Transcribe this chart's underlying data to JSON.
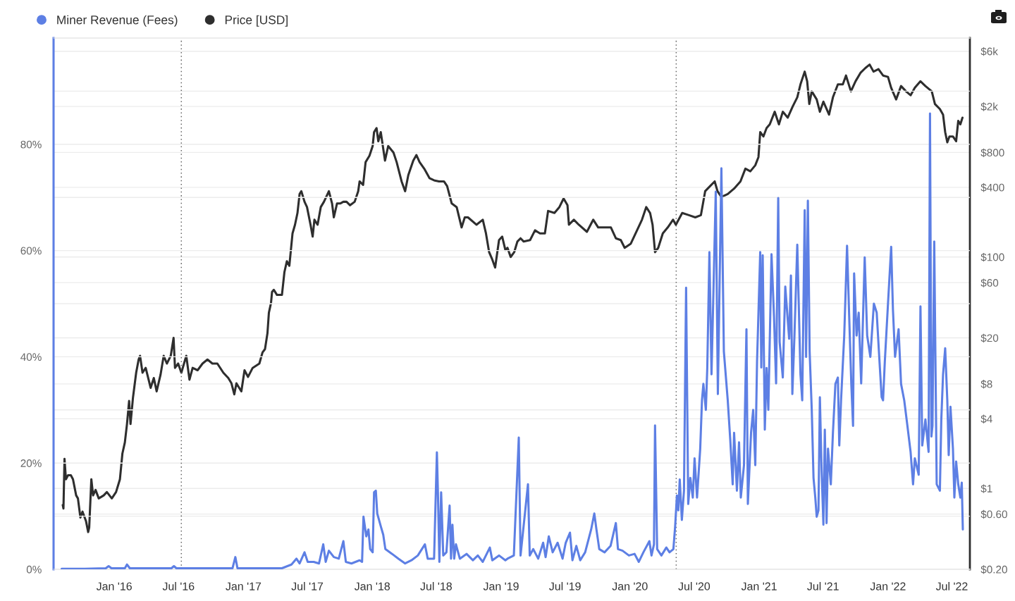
{
  "chart_data": {
    "type": "line",
    "series": [
      {
        "name": "Miner Revenue (Fees)",
        "color": "#5d7fe4",
        "axis": "y",
        "x": [
          "2015-08-05",
          "2015-10-09",
          "2015-12-08",
          "2015-12-16",
          "2015-12-24",
          "2016-01-31",
          "2016-02-06",
          "2016-02-14",
          "2016-04-26",
          "2016-06-11",
          "2016-06-18",
          "2016-06-25",
          "2016-09-13",
          "2016-12-01",
          "2016-12-09",
          "2016-12-15",
          "2017-02-19",
          "2017-04-20",
          "2017-05-17",
          "2017-05-31",
          "2017-06-09",
          "2017-06-23",
          "2017-07-02",
          "2017-07-19",
          "2017-08-03",
          "2017-08-15",
          "2017-08-22",
          "2017-08-31",
          "2017-09-14",
          "2017-09-28",
          "2017-10-11",
          "2017-10-18",
          "2017-11-03",
          "2017-11-26",
          "2017-12-03",
          "2017-12-07",
          "2017-12-15",
          "2017-12-21",
          "2017-12-26",
          "2018-01-02",
          "2018-01-06",
          "2018-01-11",
          "2018-01-15",
          "2018-01-25",
          "2018-02-01",
          "2018-02-07",
          "2018-02-26",
          "2018-03-16",
          "2018-04-04",
          "2018-04-22",
          "2018-05-10",
          "2018-05-30",
          "2018-06-07",
          "2018-06-25",
          "2018-07-03",
          "2018-07-06",
          "2018-07-10",
          "2018-07-15",
          "2018-07-21",
          "2018-07-30",
          "2018-08-08",
          "2018-08-12",
          "2018-08-16",
          "2018-08-21",
          "2018-08-26",
          "2018-09-06",
          "2018-09-25",
          "2018-10-13",
          "2018-10-27",
          "2018-11-10",
          "2018-11-30",
          "2018-12-07",
          "2018-12-26",
          "2019-01-13",
          "2019-01-19",
          "2019-02-06",
          "2019-02-20",
          "2019-02-25",
          "2019-03-18",
          "2019-03-23",
          "2019-04-02",
          "2019-04-16",
          "2019-04-30",
          "2019-05-07",
          "2019-05-16",
          "2019-05-27",
          "2019-06-10",
          "2019-06-24",
          "2019-07-03",
          "2019-07-15",
          "2019-07-22",
          "2019-08-02",
          "2019-08-13",
          "2019-08-27",
          "2019-09-13",
          "2019-09-22",
          "2019-09-28",
          "2019-10-06",
          "2019-10-21",
          "2019-11-07",
          "2019-11-22",
          "2019-11-28",
          "2019-12-11",
          "2019-12-29",
          "2020-01-14",
          "2020-01-26",
          "2020-02-08",
          "2020-02-25",
          "2020-03-02",
          "2020-03-09",
          "2020-03-12",
          "2020-03-18",
          "2020-03-30",
          "2020-04-13",
          "2020-04-22",
          "2020-05-03",
          "2020-05-08",
          "2020-05-13",
          "2020-05-17",
          "2020-05-21",
          "2020-05-27",
          "2020-06-02",
          "2020-06-08",
          "2020-06-14",
          "2020-06-20",
          "2020-06-27",
          "2020-07-02",
          "2020-07-09",
          "2020-07-18",
          "2020-07-23",
          "2020-07-27",
          "2020-08-03",
          "2020-08-07",
          "2020-08-13",
          "2020-08-19",
          "2020-08-31",
          "2020-09-06",
          "2020-09-16",
          "2020-09-23",
          "2020-10-04",
          "2020-10-11",
          "2020-10-18",
          "2020-10-22",
          "2020-10-30",
          "2020-11-05",
          "2020-11-10",
          "2020-11-19",
          "2020-11-26",
          "2020-11-30",
          "2020-12-09",
          "2020-12-15",
          "2020-12-21",
          "2020-12-26",
          "2021-01-04",
          "2021-01-07",
          "2021-01-11",
          "2021-01-17",
          "2021-01-22",
          "2021-01-27",
          "2021-02-05",
          "2021-02-12",
          "2021-02-18",
          "2021-02-24",
          "2021-02-28",
          "2021-03-09",
          "2021-03-16",
          "2021-03-27",
          "2021-04-01",
          "2021-04-05",
          "2021-04-11",
          "2021-04-19",
          "2021-04-28",
          "2021-05-03",
          "2021-05-10",
          "2021-05-14",
          "2021-05-19",
          "2021-05-24",
          "2021-05-30",
          "2021-06-04",
          "2021-06-09",
          "2021-06-13",
          "2021-06-18",
          "2021-06-22",
          "2021-06-27",
          "2021-07-02",
          "2021-07-06",
          "2021-07-11",
          "2021-07-15",
          "2021-07-23",
          "2021-07-29",
          "2021-08-05",
          "2021-08-12",
          "2021-08-16",
          "2021-08-21",
          "2021-08-30",
          "2021-09-07",
          "2021-09-13",
          "2021-09-19",
          "2021-09-24",
          "2021-09-27",
          "2021-10-04",
          "2021-10-10",
          "2021-10-17",
          "2021-10-27",
          "2021-11-03",
          "2021-11-12",
          "2021-11-22",
          "2021-11-30",
          "2021-12-09",
          "2021-12-14",
          "2021-12-18",
          "2021-12-23",
          "2022-01-01",
          "2022-01-10",
          "2022-01-15",
          "2022-01-21",
          "2022-01-31",
          "2022-02-07",
          "2022-02-16",
          "2022-02-25",
          "2022-03-06",
          "2022-03-13",
          "2022-03-18",
          "2022-03-29",
          "2022-04-03",
          "2022-04-08",
          "2022-04-17",
          "2022-04-26",
          "2022-04-30",
          "2022-05-04",
          "2022-05-07",
          "2022-05-12",
          "2022-05-19",
          "2022-05-28",
          "2022-06-01",
          "2022-06-06",
          "2022-06-12",
          "2022-06-18",
          "2022-06-22",
          "2022-06-27",
          "2022-07-04",
          "2022-07-08",
          "2022-07-13",
          "2022-07-19",
          "2022-07-25",
          "2022-07-29",
          "2022-08-01"
        ],
        "values": [
          0.1,
          0.1,
          0.2,
          0.6,
          0.2,
          0.2,
          0.9,
          0.2,
          0.2,
          0.2,
          0.6,
          0.2,
          0.2,
          0.2,
          2.3,
          0.2,
          0.2,
          0.2,
          0.9,
          2.0,
          1.1,
          3.2,
          1.4,
          1.4,
          1.1,
          4.7,
          1.4,
          3.5,
          2.3,
          2.0,
          5.3,
          1.4,
          1.1,
          1.7,
          1.4,
          9.9,
          6.2,
          7.5,
          3.8,
          3.2,
          14.5,
          14.8,
          10.5,
          8.1,
          6.5,
          3.8,
          2.9,
          2.0,
          1.1,
          1.7,
          2.6,
          4.7,
          2.0,
          2.0,
          22.0,
          14.2,
          1.4,
          14.5,
          2.6,
          3.2,
          12.0,
          2.0,
          8.4,
          2.0,
          4.7,
          2.0,
          2.9,
          1.7,
          2.6,
          1.4,
          4.1,
          1.7,
          2.6,
          1.7,
          2.0,
          2.6,
          24.8,
          2.6,
          16.0,
          2.6,
          3.8,
          2.0,
          5.0,
          2.3,
          6.2,
          3.2,
          5.0,
          2.0,
          5.0,
          6.9,
          1.7,
          4.4,
          1.7,
          3.2,
          7.5,
          10.5,
          7.5,
          3.8,
          3.2,
          4.4,
          8.7,
          3.8,
          3.5,
          2.6,
          2.9,
          1.4,
          3.2,
          5.3,
          2.6,
          4.7,
          27.1,
          3.8,
          2.6,
          4.1,
          3.2,
          3.8,
          8.1,
          13.9,
          11.1,
          16.9,
          9.3,
          14.8,
          53.0,
          12.3,
          17.2,
          13.5,
          20.9,
          13.5,
          22.7,
          31.8,
          34.9,
          30.0,
          37.9,
          59.7,
          36.7,
          71.1,
          33.0,
          75.5,
          41.0,
          31.8,
          24.5,
          16.0,
          25.7,
          14.8,
          23.9,
          13.5,
          19.6,
          45.2,
          12.3,
          25.7,
          30.0,
          19.6,
          39.1,
          59.7,
          38,
          59.1,
          26.3,
          37.9,
          30,
          59.3,
          47.7,
          35,
          69.9,
          42.8,
          36.1,
          53.2,
          43.4,
          55.3,
          33.0,
          44.0,
          61.1,
          36.7,
          31.8,
          67.6,
          40,
          69.4,
          41.0,
          30.0,
          17.2,
          13.5,
          9.9,
          11.1,
          32.4,
          18.4,
          8.4,
          26.3,
          8.7,
          22.7,
          16.0,
          25.7,
          34.9,
          36.1,
          23.3,
          31.8,
          44.0,
          60.9,
          47.7,
          35,
          27.0,
          55.7,
          44.0,
          48.3,
          35,
          58.7,
          44.0,
          40,
          50,
          48.3,
          37.9,
          32.4,
          31.8,
          39.1,
          50,
          60.7,
          48.9,
          40,
          45.2,
          34.9,
          31.8,
          27.0,
          22.1,
          16.0,
          20.9,
          17.8,
          49.5,
          23.3,
          28.2,
          22.1,
          85.8,
          25,
          27.0,
          61.7,
          16.0,
          14.8,
          28.2,
          36.7,
          41.6,
          31.8,
          21.5,
          30.6,
          22.7,
          13.5,
          20.3,
          16.0,
          13.5,
          16.3,
          7.5
        ]
      },
      {
        "name": "Price [USD]",
        "color": "#2e2e2e",
        "axis": "y2",
        "x": [
          "2015-08-08",
          "2015-08-10",
          "2015-08-13",
          "2015-08-17",
          "2015-08-23",
          "2015-08-31",
          "2015-09-06",
          "2015-09-15",
          "2015-09-20",
          "2015-09-27",
          "2015-10-03",
          "2015-10-13",
          "2015-10-19",
          "2015-10-22",
          "2015-10-28",
          "2015-11-02",
          "2015-11-09",
          "2015-11-18",
          "2015-12-02",
          "2015-12-11",
          "2015-12-25",
          "2016-01-06",
          "2016-01-17",
          "2016-01-24",
          "2016-01-31",
          "2016-02-06",
          "2016-02-12",
          "2016-02-16",
          "2016-02-23",
          "2016-03-03",
          "2016-03-10",
          "2016-03-14",
          "2016-03-21",
          "2016-03-30",
          "2016-04-13",
          "2016-04-22",
          "2016-04-30",
          "2016-05-11",
          "2016-05-20",
          "2016-05-29",
          "2016-06-09",
          "2016-06-17",
          "2016-06-21",
          "2016-06-30",
          "2016-07-09",
          "2016-07-23",
          "2016-08-01",
          "2016-08-10",
          "2016-08-24",
          "2016-09-07",
          "2016-09-21",
          "2016-10-05",
          "2016-10-19",
          "2016-11-05",
          "2016-11-19",
          "2016-11-28",
          "2016-12-06",
          "2016-12-12",
          "2016-12-26",
          "2017-01-04",
          "2017-01-14",
          "2017-01-27",
          "2017-02-15",
          "2017-02-24",
          "2017-03-03",
          "2017-03-10",
          "2017-03-14",
          "2017-03-20",
          "2017-03-23",
          "2017-03-28",
          "2017-04-06",
          "2017-04-20",
          "2017-04-27",
          "2017-05-04",
          "2017-05-11",
          "2017-05-20",
          "2017-05-27",
          "2017-06-03",
          "2017-06-09",
          "2017-06-14",
          "2017-06-23",
          "2017-06-30",
          "2017-07-10",
          "2017-07-16",
          "2017-07-21",
          "2017-07-30",
          "2017-08-08",
          "2017-08-17",
          "2017-08-31",
          "2017-09-09",
          "2017-09-14",
          "2017-09-23",
          "2017-10-02",
          "2017-10-11",
          "2017-10-20",
          "2017-10-30",
          "2017-11-12",
          "2017-11-22",
          "2017-11-26",
          "2017-12-06",
          "2017-12-13",
          "2017-12-24",
          "2018-01-02",
          "2018-01-06",
          "2018-01-13",
          "2018-01-18",
          "2018-01-25",
          "2018-02-06",
          "2018-02-15",
          "2018-03-02",
          "2018-03-11",
          "2018-03-25",
          "2018-04-04",
          "2018-04-13",
          "2018-04-27",
          "2018-05-06",
          "2018-05-15",
          "2018-05-28",
          "2018-06-12",
          "2018-06-25",
          "2018-07-09",
          "2018-07-23",
          "2018-08-01",
          "2018-08-14",
          "2018-08-28",
          "2018-09-11",
          "2018-09-20",
          "2018-09-29",
          "2018-10-23",
          "2018-11-10",
          "2018-11-19",
          "2018-11-28",
          "2018-12-07",
          "2018-12-15",
          "2018-12-26",
          "2019-01-04",
          "2019-01-13",
          "2019-01-19",
          "2019-01-28",
          "2019-02-07",
          "2019-02-16",
          "2019-02-25",
          "2019-03-06",
          "2019-03-24",
          "2019-04-07",
          "2019-04-21",
          "2019-05-05",
          "2019-05-14",
          "2019-06-01",
          "2019-06-15",
          "2019-06-27",
          "2019-07-08",
          "2019-07-12",
          "2019-07-26",
          "2019-08-09",
          "2019-09-01",
          "2019-09-19",
          "2019-10-03",
          "2019-10-21",
          "2019-11-08",
          "2019-11-22",
          "2019-12-06",
          "2019-12-17",
          "2020-01-03",
          "2020-01-21",
          "2020-02-04",
          "2020-02-16",
          "2020-02-27",
          "2020-03-05",
          "2020-03-12",
          "2020-03-21",
          "2020-04-03",
          "2020-04-17",
          "2020-05-02",
          "2020-05-10",
          "2020-05-28",
          "2020-06-16",
          "2020-07-04",
          "2020-07-20",
          "2020-08-01",
          "2020-08-15",
          "2020-08-28",
          "2020-09-05",
          "2020-09-16",
          "2020-10-04",
          "2020-10-22",
          "2020-11-09",
          "2020-11-23",
          "2020-12-07",
          "2020-12-21",
          "2020-12-30",
          "2021-01-04",
          "2021-01-13",
          "2021-01-22",
          "2021-01-31",
          "2021-02-14",
          "2021-02-26",
          "2021-03-09",
          "2021-03-23",
          "2021-04-06",
          "2021-04-19",
          "2021-04-28",
          "2021-05-10",
          "2021-05-17",
          "2021-05-23",
          "2021-05-30",
          "2021-06-13",
          "2021-06-22",
          "2021-07-02",
          "2021-07-18",
          "2021-07-29",
          "2021-08-12",
          "2021-08-26",
          "2021-09-04",
          "2021-09-18",
          "2021-10-01",
          "2021-10-15",
          "2021-10-29",
          "2021-11-10",
          "2021-11-21",
          "2021-12-05",
          "2021-12-18",
          "2022-01-01",
          "2022-01-10",
          "2022-01-24",
          "2022-02-07",
          "2022-02-21",
          "2022-03-06",
          "2022-03-18",
          "2022-04-03",
          "2022-04-17",
          "2022-05-05",
          "2022-05-14",
          "2022-05-28",
          "2022-06-06",
          "2022-06-12",
          "2022-06-18",
          "2022-06-24",
          "2022-07-04",
          "2022-07-13",
          "2022-07-19",
          "2022-07-25",
          "2022-07-31"
        ],
        "values": [
          0.72,
          0.67,
          1.8,
          1.2,
          1.3,
          1.3,
          1.2,
          0.87,
          0.82,
          0.56,
          0.63,
          0.52,
          0.42,
          0.46,
          1.2,
          0.87,
          0.97,
          0.82,
          0.87,
          0.93,
          0.82,
          0.93,
          1.2,
          2.0,
          2.5,
          3.6,
          5.7,
          3.6,
          6.1,
          10,
          13,
          14,
          10,
          11,
          7.4,
          9.0,
          6.9,
          9.6,
          14,
          12,
          14,
          20,
          11,
          12,
          10,
          14,
          8.7,
          11,
          10.5,
          12,
          13,
          12,
          12,
          10,
          9.0,
          8.1,
          6.5,
          8.1,
          6.9,
          10.5,
          9.2,
          11,
          12,
          15,
          16,
          22,
          33,
          40,
          50,
          52,
          47,
          47,
          74,
          92,
          84,
          160,
          190,
          240,
          350,
          370,
          300,
          270,
          190,
          150,
          210,
          190,
          270,
          300,
          370,
          290,
          220,
          290,
          290,
          300,
          300,
          280,
          300,
          370,
          450,
          420,
          660,
          750,
          910,
          1200,
          1300,
          1000,
          1200,
          680,
          910,
          800,
          660,
          450,
          370,
          510,
          680,
          760,
          660,
          580,
          480,
          460,
          450,
          450,
          410,
          290,
          270,
          180,
          220,
          220,
          190,
          210,
          160,
          110,
          95,
          81,
          140,
          150,
          115,
          120,
          100,
          110,
          136,
          145,
          136,
          140,
          170,
          160,
          160,
          250,
          240,
          270,
          320,
          280,
          190,
          210,
          190,
          165,
          210,
          180,
          180,
          180,
          145,
          140,
          120,
          130,
          170,
          210,
          270,
          240,
          190,
          110,
          120,
          160,
          180,
          210,
          190,
          240,
          230,
          220,
          230,
          370,
          410,
          450,
          370,
          330,
          350,
          390,
          450,
          580,
          550,
          620,
          730,
          1200,
          1100,
          1300,
          1400,
          1800,
          1400,
          1800,
          1600,
          2000,
          2400,
          3100,
          4000,
          3300,
          2100,
          2700,
          2300,
          1800,
          2200,
          1700,
          2400,
          3100,
          3100,
          3700,
          2700,
          3300,
          3900,
          4300,
          4600,
          4000,
          4200,
          3700,
          3600,
          2900,
          2300,
          3000,
          2700,
          2500,
          2900,
          3300,
          3000,
          2700,
          2100,
          1900,
          1700,
          1200,
          980,
          1100,
          1100,
          1000,
          1500,
          1400,
          1600
        ]
      }
    ],
    "xlim": [
      "2015-07-13",
      "2022-08-21"
    ],
    "xticks": [
      {
        "value": "2016-01-01",
        "label": "Jan '16"
      },
      {
        "value": "2016-07-01",
        "label": "Jul '16"
      },
      {
        "value": "2017-01-01",
        "label": "Jan '17"
      },
      {
        "value": "2017-07-01",
        "label": "Jul '17"
      },
      {
        "value": "2018-01-01",
        "label": "Jan '18"
      },
      {
        "value": "2018-07-01",
        "label": "Jul '18"
      },
      {
        "value": "2019-01-01",
        "label": "Jan '19"
      },
      {
        "value": "2019-07-01",
        "label": "Jul '19"
      },
      {
        "value": "2020-01-01",
        "label": "Jan '20"
      },
      {
        "value": "2020-07-01",
        "label": "Jul '20"
      },
      {
        "value": "2021-01-01",
        "label": "Jan '21"
      },
      {
        "value": "2021-07-01",
        "label": "Jul '21"
      },
      {
        "value": "2022-01-01",
        "label": "Jan '22"
      },
      {
        "value": "2022-07-01",
        "label": "Jul '22"
      }
    ],
    "ylim": [
      0,
      100
    ],
    "yticks": [
      {
        "value": 0,
        "label": "0%"
      },
      {
        "value": 10,
        "label": null
      },
      {
        "value": 20,
        "label": "20%"
      },
      {
        "value": 30,
        "label": null
      },
      {
        "value": 40,
        "label": "40%"
      },
      {
        "value": 50,
        "label": null
      },
      {
        "value": 60,
        "label": "60%"
      },
      {
        "value": 70,
        "label": null
      },
      {
        "value": 80,
        "label": "80%"
      },
      {
        "value": 90,
        "label": null
      }
    ],
    "y2lim": [
      0.2,
      7800
    ],
    "y2ticks": [
      {
        "value": 0.2,
        "label": "$0.20"
      },
      {
        "value": 0.6,
        "label": "$0.60"
      },
      {
        "value": 1,
        "label": "$1"
      },
      {
        "value": 4,
        "label": "$4"
      },
      {
        "value": 8,
        "label": "$8"
      },
      {
        "value": 20,
        "label": "$20"
      },
      {
        "value": 60,
        "label": "$60"
      },
      {
        "value": 100,
        "label": "$100"
      },
      {
        "value": 400,
        "label": "$400"
      },
      {
        "value": 800,
        "label": "$800"
      },
      {
        "value": 2000,
        "label": "$2k"
      },
      {
        "value": 6000,
        "label": "$6k"
      }
    ],
    "log": "y2",
    "grid": "y",
    "legend": "top left",
    "ref_lines": [
      {
        "axis": "x",
        "value": "2016-07-09",
        "color": "#666666",
        "line_style": "dotted"
      },
      {
        "axis": "x",
        "value": "2020-05-11",
        "color": "#666666",
        "line_style": "dotted"
      }
    ]
  }
}
